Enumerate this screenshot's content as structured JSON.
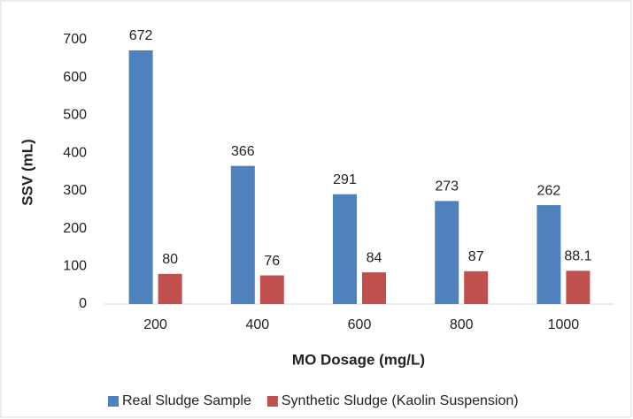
{
  "chart_data": {
    "type": "bar",
    "x_label": "MO Dosage (mg/L)",
    "y_label": "SSV (mL)",
    "categories": [
      "200",
      "400",
      "600",
      "800",
      "1000"
    ],
    "series": [
      {
        "name": "Real Sludge Sample",
        "color": "#4f81bd",
        "values": [
          672,
          366,
          291,
          273,
          262
        ]
      },
      {
        "name": "Synthetic Sludge (Kaolin Suspension)",
        "color": "#c0504d",
        "values": [
          80,
          76,
          84,
          87,
          88.1
        ]
      }
    ],
    "ylim": [
      0,
      700
    ],
    "yticks": [
      0,
      100,
      200,
      300,
      400,
      500,
      600,
      700
    ],
    "grid": false,
    "legend": "bottom"
  }
}
